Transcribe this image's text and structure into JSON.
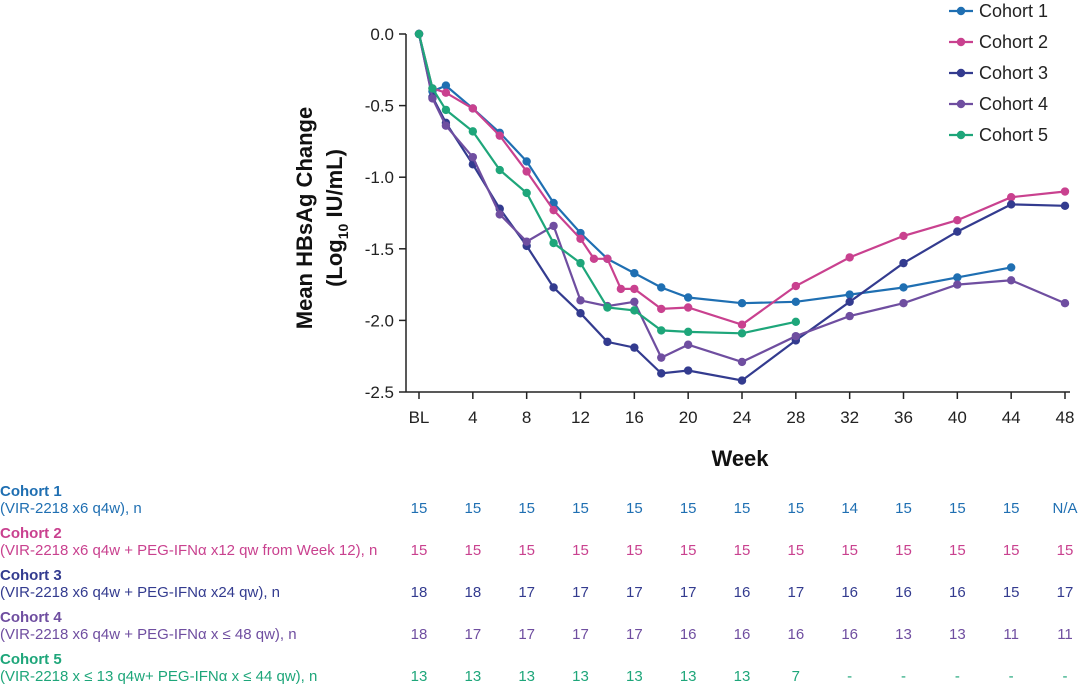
{
  "chart_data": {
    "type": "line",
    "xlabel": "Week",
    "ylabel_main": "Mean HBsAg Change",
    "ylabel_unit_prefix": "(Log",
    "ylabel_unit_sub": "10",
    "ylabel_unit_suffix": " IU/mL)",
    "ylim": [
      -2.5,
      0.0
    ],
    "yticks": [
      0.0,
      -0.5,
      -1.0,
      -1.5,
      -2.0,
      -2.5
    ],
    "ytick_labels": [
      "0.0",
      "-0.5",
      "-1.0",
      "-1.5",
      "-2.0",
      "-2.5"
    ],
    "xlim": [
      0,
      48
    ],
    "xticks": [
      0,
      4,
      8,
      12,
      16,
      20,
      24,
      28,
      32,
      36,
      40,
      44,
      48
    ],
    "xtick_labels": [
      "BL",
      "4",
      "8",
      "12",
      "16",
      "20",
      "24",
      "28",
      "32",
      "36",
      "40",
      "44",
      "48"
    ],
    "legend_position": "top-right",
    "series": [
      {
        "name": "Cohort 1",
        "color": "#1f6fb2",
        "x": [
          0,
          1,
          2,
          4,
          6,
          8,
          10,
          12,
          14,
          16,
          18,
          20,
          24,
          28,
          32,
          36,
          40,
          44
        ],
        "y": [
          0.0,
          -0.4,
          -0.36,
          -0.52,
          -0.69,
          -0.89,
          -1.18,
          -1.39,
          -1.57,
          -1.67,
          -1.77,
          -1.84,
          -1.88,
          -1.87,
          -1.82,
          -1.77,
          -1.7,
          -1.63
        ]
      },
      {
        "name": "Cohort 2",
        "color": "#c9418f",
        "x": [
          0,
          1,
          2,
          4,
          6,
          8,
          10,
          12,
          13,
          14,
          15,
          16,
          18,
          20,
          24,
          28,
          32,
          36,
          40,
          44,
          48
        ],
        "y": [
          0.0,
          -0.38,
          -0.41,
          -0.52,
          -0.71,
          -0.96,
          -1.23,
          -1.43,
          -1.57,
          -1.57,
          -1.78,
          -1.78,
          -1.92,
          -1.91,
          -2.03,
          -1.76,
          -1.56,
          -1.41,
          -1.3,
          -1.14,
          -1.1
        ]
      },
      {
        "name": "Cohort 3",
        "color": "#333b8f",
        "x": [
          0,
          1,
          2,
          4,
          6,
          8,
          10,
          12,
          14,
          16,
          18,
          20,
          24,
          28,
          32,
          36,
          40,
          44,
          48
        ],
        "y": [
          0.0,
          -0.44,
          -0.62,
          -0.91,
          -1.22,
          -1.48,
          -1.77,
          -1.95,
          -2.15,
          -2.19,
          -2.37,
          -2.35,
          -2.42,
          -2.14,
          -1.87,
          -1.6,
          -1.38,
          -1.19,
          -1.2
        ]
      },
      {
        "name": "Cohort 4",
        "color": "#6f4ea0",
        "x": [
          0,
          1,
          2,
          4,
          6,
          8,
          10,
          12,
          14,
          16,
          18,
          20,
          24,
          28,
          32,
          36,
          40,
          44,
          48
        ],
        "y": [
          0.0,
          -0.45,
          -0.64,
          -0.86,
          -1.26,
          -1.45,
          -1.34,
          -1.86,
          -1.9,
          -1.87,
          -2.26,
          -2.17,
          -2.29,
          -2.11,
          -1.97,
          -1.88,
          -1.75,
          -1.72,
          -1.88
        ]
      },
      {
        "name": "Cohort 5",
        "color": "#1ea67a",
        "x": [
          0,
          1,
          2,
          4,
          6,
          8,
          10,
          12,
          14,
          16,
          18,
          20,
          24,
          28
        ],
        "y": [
          0.0,
          -0.38,
          -0.53,
          -0.68,
          -0.95,
          -1.11,
          -1.46,
          -1.6,
          -1.91,
          -1.93,
          -2.07,
          -2.08,
          -2.09,
          -2.01
        ]
      }
    ]
  },
  "n_table": {
    "rows": [
      {
        "name": "Cohort 1",
        "desc": "(VIR-2218 x6 q4w), n",
        "color": "#1f6fb2",
        "values": [
          "15",
          "15",
          "15",
          "15",
          "15",
          "15",
          "15",
          "15",
          "14",
          "15",
          "15",
          "15",
          "N/A"
        ]
      },
      {
        "name": "Cohort 2",
        "desc": "(VIR-2218 x6 q4w + PEG-IFNα x12 qw from Week 12), n",
        "color": "#c9418f",
        "values": [
          "15",
          "15",
          "15",
          "15",
          "15",
          "15",
          "15",
          "15",
          "15",
          "15",
          "15",
          "15",
          "15"
        ]
      },
      {
        "name": "Cohort 3",
        "desc": "(VIR-2218 x6 q4w + PEG-IFNα x24 qw), n",
        "color": "#333b8f",
        "values": [
          "18",
          "18",
          "17",
          "17",
          "17",
          "17",
          "16",
          "17",
          "16",
          "16",
          "16",
          "15",
          "17"
        ]
      },
      {
        "name": "Cohort 4",
        "desc": "(VIR-2218 x6 q4w + PEG-IFNα x ≤ 48 qw), n",
        "color": "#6f4ea0",
        "values": [
          "18",
          "17",
          "17",
          "17",
          "17",
          "16",
          "16",
          "16",
          "16",
          "13",
          "13",
          "11",
          "11"
        ]
      },
      {
        "name": "Cohort 5",
        "desc": "(VIR-2218 x ≤ 13 q4w+ PEG-IFNα x ≤ 44 qw), n",
        "color": "#1ea67a",
        "values": [
          "13",
          "13",
          "13",
          "13",
          "13",
          "13",
          "13",
          "7",
          "-",
          "-",
          "-",
          "-",
          "-"
        ]
      }
    ]
  }
}
